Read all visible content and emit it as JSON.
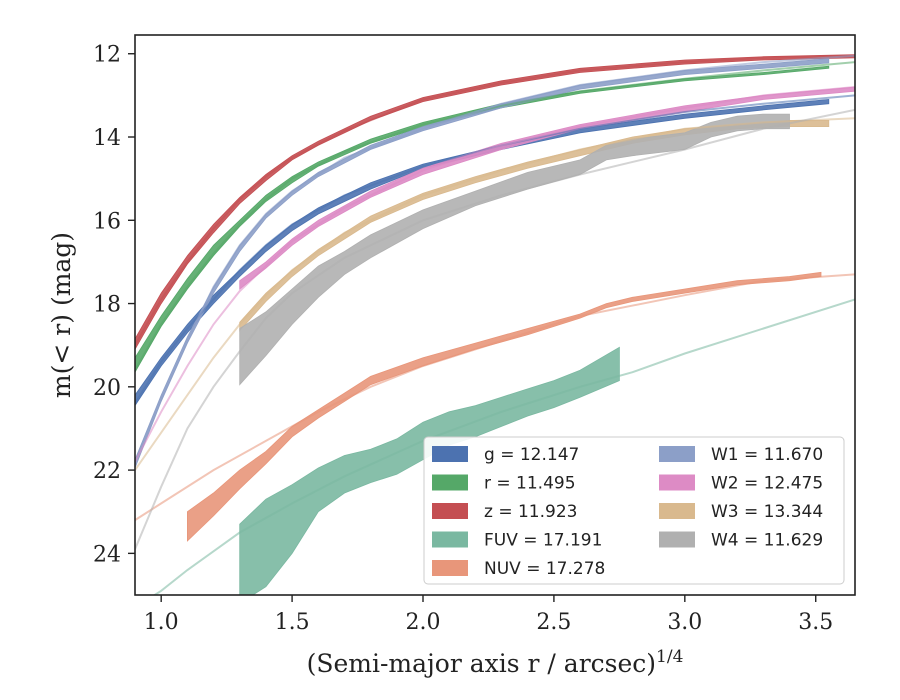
{
  "chart_data": {
    "type": "line",
    "xlabel": "(Semi-major axis r / arcsec)",
    "xlabel_superscript": "1/4",
    "ylabel": "m(< r) (mag)",
    "xlim": [
      0.9,
      3.65
    ],
    "ylim": [
      25.0,
      11.55
    ],
    "y_inverted": true,
    "x_ticks": [
      1.0,
      1.5,
      2.0,
      2.5,
      3.0,
      3.5
    ],
    "x_tick_labels": [
      "1.0",
      "1.5",
      "2.0",
      "2.5",
      "3.0",
      "3.5"
    ],
    "y_ticks": [
      12,
      14,
      16,
      18,
      20,
      22,
      24
    ],
    "y_tick_labels": [
      "12",
      "14",
      "16",
      "18",
      "20",
      "22",
      "24"
    ],
    "grid": false,
    "legend_position": "lower-right",
    "series": [
      {
        "name": "g = 12.147",
        "color": "#4c72b0",
        "model": [
          [
            0.9,
            20.4
          ],
          [
            1.0,
            19.4
          ],
          [
            1.1,
            18.6
          ],
          [
            1.2,
            17.9
          ],
          [
            1.3,
            17.2
          ],
          [
            1.4,
            16.6
          ],
          [
            1.5,
            16.1
          ],
          [
            1.7,
            15.4
          ],
          [
            2.0,
            14.7
          ],
          [
            2.3,
            14.2
          ],
          [
            2.6,
            13.8
          ],
          [
            3.0,
            13.4
          ],
          [
            3.3,
            13.2
          ],
          [
            3.65,
            13.0
          ]
        ],
        "band_x": [
          0.9,
          1.0,
          1.1,
          1.2,
          1.3,
          1.4,
          1.5,
          1.6,
          1.8,
          2.0,
          2.3,
          2.6,
          3.0,
          3.3,
          3.55
        ],
        "band_upper": [
          20.2,
          19.3,
          18.5,
          17.8,
          17.2,
          16.6,
          16.1,
          15.7,
          15.1,
          14.65,
          14.2,
          13.8,
          13.45,
          13.25,
          13.1
        ],
        "band_lower": [
          20.45,
          19.5,
          18.7,
          18.0,
          17.35,
          16.75,
          16.25,
          15.85,
          15.25,
          14.75,
          14.3,
          13.9,
          13.55,
          13.35,
          13.2
        ]
      },
      {
        "name": "r = 11.495",
        "color": "#55a868",
        "model": [
          [
            0.9,
            19.6
          ],
          [
            1.0,
            18.5
          ],
          [
            1.1,
            17.6
          ],
          [
            1.2,
            16.8
          ],
          [
            1.3,
            16.1
          ],
          [
            1.4,
            15.5
          ],
          [
            1.5,
            15.0
          ],
          [
            1.7,
            14.35
          ],
          [
            2.0,
            13.7
          ],
          [
            2.3,
            13.25
          ],
          [
            2.6,
            12.9
          ],
          [
            3.0,
            12.6
          ],
          [
            3.3,
            12.4
          ],
          [
            3.65,
            12.2
          ]
        ],
        "band_x": [
          0.9,
          1.0,
          1.1,
          1.2,
          1.3,
          1.4,
          1.5,
          1.6,
          1.8,
          2.0,
          2.3,
          2.6,
          3.0,
          3.3,
          3.55
        ],
        "band_upper": [
          19.3,
          18.3,
          17.4,
          16.6,
          16.0,
          15.4,
          14.95,
          14.6,
          14.05,
          13.65,
          13.2,
          12.9,
          12.6,
          12.45,
          12.3
        ],
        "band_lower": [
          19.65,
          18.55,
          17.65,
          16.85,
          16.15,
          15.55,
          15.1,
          14.7,
          14.15,
          13.75,
          13.3,
          12.95,
          12.65,
          12.5,
          12.35
        ]
      },
      {
        "name": "z = 11.923",
        "color": "#c44e52",
        "model": [
          [
            0.9,
            19.0
          ],
          [
            1.0,
            17.9
          ],
          [
            1.1,
            17.0
          ],
          [
            1.2,
            16.2
          ],
          [
            1.3,
            15.5
          ],
          [
            1.4,
            14.95
          ],
          [
            1.5,
            14.5
          ],
          [
            1.7,
            13.85
          ],
          [
            2.0,
            13.1
          ],
          [
            2.3,
            12.7
          ],
          [
            2.6,
            12.4
          ],
          [
            3.0,
            12.2
          ],
          [
            3.3,
            12.1
          ],
          [
            3.65,
            12.05
          ]
        ],
        "band_x": [
          0.9,
          1.0,
          1.1,
          1.2,
          1.3,
          1.4,
          1.5,
          1.6,
          1.8,
          2.0,
          2.3,
          2.6,
          3.0,
          3.3,
          3.65
        ],
        "band_upper": [
          18.85,
          17.75,
          16.85,
          16.1,
          15.45,
          14.9,
          14.45,
          14.1,
          13.5,
          13.05,
          12.65,
          12.35,
          12.15,
          12.07,
          12.02
        ],
        "band_lower": [
          19.1,
          18.0,
          17.05,
          16.3,
          15.6,
          15.05,
          14.55,
          14.2,
          13.6,
          13.15,
          12.75,
          12.45,
          12.25,
          12.15,
          12.1
        ]
      },
      {
        "name": "FUV = 17.191",
        "color": "#7ab8a1",
        "model": [
          [
            0.9,
            25.3
          ],
          [
            1.0,
            24.9
          ],
          [
            1.1,
            24.4
          ],
          [
            1.2,
            23.95
          ],
          [
            1.3,
            23.5
          ],
          [
            1.5,
            22.8
          ],
          [
            1.7,
            22.15
          ],
          [
            2.0,
            21.3
          ],
          [
            2.3,
            20.6
          ],
          [
            2.6,
            20.0
          ],
          [
            2.8,
            19.65
          ],
          [
            3.0,
            19.2
          ],
          [
            3.3,
            18.6
          ],
          [
            3.65,
            17.9
          ]
        ],
        "band_x": [
          1.3,
          1.35,
          1.4,
          1.5,
          1.6,
          1.7,
          1.8,
          1.9,
          2.0,
          2.1,
          2.2,
          2.3,
          2.4,
          2.5,
          2.6,
          2.75
        ],
        "band_upper": [
          23.3,
          23.0,
          22.7,
          22.35,
          21.95,
          21.65,
          21.5,
          21.25,
          20.85,
          20.6,
          20.45,
          20.25,
          20.05,
          19.85,
          19.6,
          19.05
        ],
        "band_lower": [
          25.2,
          25.0,
          24.8,
          24.0,
          23.0,
          22.55,
          22.3,
          22.1,
          21.75,
          21.4,
          21.2,
          20.95,
          20.7,
          20.5,
          20.25,
          19.85
        ]
      },
      {
        "name": "NUV = 17.278",
        "color": "#e8967a",
        "model": [
          [
            0.9,
            23.2
          ],
          [
            1.0,
            22.8
          ],
          [
            1.2,
            22.0
          ],
          [
            1.4,
            21.3
          ],
          [
            1.6,
            20.6
          ],
          [
            1.8,
            20.0
          ],
          [
            2.0,
            19.5
          ],
          [
            2.3,
            18.9
          ],
          [
            2.6,
            18.3
          ],
          [
            3.0,
            17.8
          ],
          [
            3.3,
            17.45
          ],
          [
            3.65,
            17.3
          ]
        ],
        "band_x": [
          1.1,
          1.2,
          1.3,
          1.4,
          1.5,
          1.6,
          1.7,
          1.8,
          2.0,
          2.2,
          2.4,
          2.6,
          2.7,
          2.8,
          3.0,
          3.2,
          3.4,
          3.52
        ],
        "band_upper": [
          23.0,
          22.55,
          22.0,
          21.55,
          20.95,
          20.55,
          20.15,
          19.75,
          19.3,
          18.95,
          18.6,
          18.25,
          18.0,
          17.85,
          17.65,
          17.45,
          17.35,
          17.25
        ],
        "band_lower": [
          23.7,
          23.1,
          22.45,
          21.85,
          21.2,
          20.75,
          20.35,
          19.95,
          19.5,
          19.1,
          18.75,
          18.35,
          18.1,
          17.95,
          17.75,
          17.55,
          17.45,
          17.35
        ]
      },
      {
        "name": "W1 = 11.670",
        "color": "#8c9fc8",
        "model": [
          [
            0.9,
            21.8
          ],
          [
            1.0,
            20.3
          ],
          [
            1.1,
            18.9
          ],
          [
            1.2,
            17.6
          ],
          [
            1.3,
            16.6
          ],
          [
            1.4,
            15.85
          ],
          [
            1.5,
            15.3
          ],
          [
            1.7,
            14.5
          ],
          [
            2.0,
            13.8
          ],
          [
            2.3,
            13.2
          ],
          [
            2.6,
            12.75
          ],
          [
            3.0,
            12.4
          ],
          [
            3.3,
            12.2
          ],
          [
            3.65,
            12.05
          ]
        ],
        "band_x": [
          0.9,
          1.0,
          1.1,
          1.2,
          1.3,
          1.4,
          1.5,
          1.6,
          1.8,
          2.0,
          2.3,
          2.6,
          3.0,
          3.3,
          3.55
        ],
        "band_upper": [
          21.75,
          20.2,
          18.8,
          17.6,
          16.6,
          15.85,
          15.3,
          14.85,
          14.2,
          13.75,
          13.2,
          12.75,
          12.4,
          12.25,
          12.12
        ],
        "band_lower": [
          21.95,
          20.35,
          18.95,
          17.75,
          16.75,
          15.95,
          15.4,
          14.95,
          14.3,
          13.85,
          13.3,
          12.85,
          12.5,
          12.35,
          12.22
        ]
      },
      {
        "name": "W2 = 12.475",
        "color": "#dd8bc5",
        "model": [
          [
            0.9,
            21.8
          ],
          [
            1.0,
            20.6
          ],
          [
            1.1,
            19.5
          ],
          [
            1.2,
            18.5
          ],
          [
            1.3,
            17.7
          ],
          [
            1.4,
            17.1
          ],
          [
            1.5,
            16.5
          ],
          [
            1.7,
            15.7
          ],
          [
            2.0,
            14.8
          ],
          [
            2.3,
            14.2
          ],
          [
            2.6,
            13.75
          ],
          [
            3.0,
            13.3
          ],
          [
            3.3,
            13.0
          ],
          [
            3.65,
            12.8
          ]
        ],
        "band_x": [
          1.3,
          1.4,
          1.5,
          1.6,
          1.8,
          2.0,
          2.3,
          2.6,
          3.0,
          3.3,
          3.65
        ],
        "band_upper": [
          17.45,
          17.0,
          16.45,
          16.0,
          15.3,
          14.75,
          14.15,
          13.7,
          13.25,
          13.0,
          12.8
        ],
        "band_lower": [
          17.65,
          17.15,
          16.6,
          16.15,
          15.45,
          14.9,
          14.3,
          13.8,
          13.4,
          13.1,
          12.9
        ]
      },
      {
        "name": "W3 = 13.344",
        "color": "#d9b98e",
        "model": [
          [
            0.9,
            22.0
          ],
          [
            1.0,
            21.1
          ],
          [
            1.1,
            20.2
          ],
          [
            1.2,
            19.3
          ],
          [
            1.3,
            18.5
          ],
          [
            1.4,
            17.8
          ],
          [
            1.5,
            17.2
          ],
          [
            1.7,
            16.3
          ],
          [
            2.0,
            15.4
          ],
          [
            2.3,
            14.8
          ],
          [
            2.6,
            14.3
          ],
          [
            3.0,
            13.8
          ],
          [
            3.3,
            13.65
          ],
          [
            3.65,
            13.55
          ]
        ],
        "band_x": [
          1.3,
          1.4,
          1.5,
          1.6,
          1.8,
          2.0,
          2.2,
          2.4,
          2.6,
          2.8,
          3.0,
          3.2,
          3.4,
          3.55
        ],
        "band_upper": [
          18.45,
          17.75,
          17.2,
          16.7,
          15.9,
          15.35,
          14.95,
          14.6,
          14.3,
          14.0,
          13.8,
          13.7,
          13.6,
          13.6
        ],
        "band_lower": [
          18.65,
          17.95,
          17.35,
          16.85,
          16.05,
          15.5,
          15.1,
          14.75,
          14.45,
          14.15,
          13.95,
          13.8,
          13.75,
          13.75
        ]
      },
      {
        "name": "W4 = 11.629",
        "color": "#b0b0b0",
        "model": [
          [
            0.9,
            23.9
          ],
          [
            1.0,
            22.4
          ],
          [
            1.1,
            21.0
          ],
          [
            1.2,
            20.0
          ],
          [
            1.3,
            19.15
          ],
          [
            1.4,
            18.35
          ],
          [
            1.5,
            17.75
          ],
          [
            1.7,
            16.9
          ],
          [
            2.0,
            16.0
          ],
          [
            2.3,
            15.4
          ],
          [
            2.6,
            14.9
          ],
          [
            3.0,
            14.3
          ],
          [
            3.3,
            13.8
          ],
          [
            3.65,
            13.35
          ]
        ],
        "band_x": [
          1.3,
          1.4,
          1.5,
          1.6,
          1.7,
          1.8,
          2.0,
          2.2,
          2.4,
          2.6,
          2.7,
          2.8,
          3.0,
          3.1,
          3.2,
          3.3,
          3.4
        ],
        "band_upper": [
          18.6,
          18.2,
          17.65,
          17.1,
          16.75,
          16.35,
          15.75,
          15.3,
          14.85,
          14.55,
          14.2,
          14.05,
          13.9,
          13.65,
          13.5,
          13.45,
          13.45
        ],
        "band_lower": [
          19.95,
          19.25,
          18.5,
          17.85,
          17.3,
          16.9,
          16.2,
          15.65,
          15.25,
          14.9,
          14.55,
          14.45,
          14.3,
          14.0,
          13.85,
          13.8,
          13.8
        ]
      }
    ],
    "legend_columns": [
      [
        "g = 12.147",
        "r = 11.495",
        "z = 11.923",
        "FUV = 17.191",
        "NUV = 17.278"
      ],
      [
        "W1 = 11.670",
        "W2 = 12.475",
        "W3 = 13.344",
        "W4 = 11.629"
      ]
    ]
  }
}
